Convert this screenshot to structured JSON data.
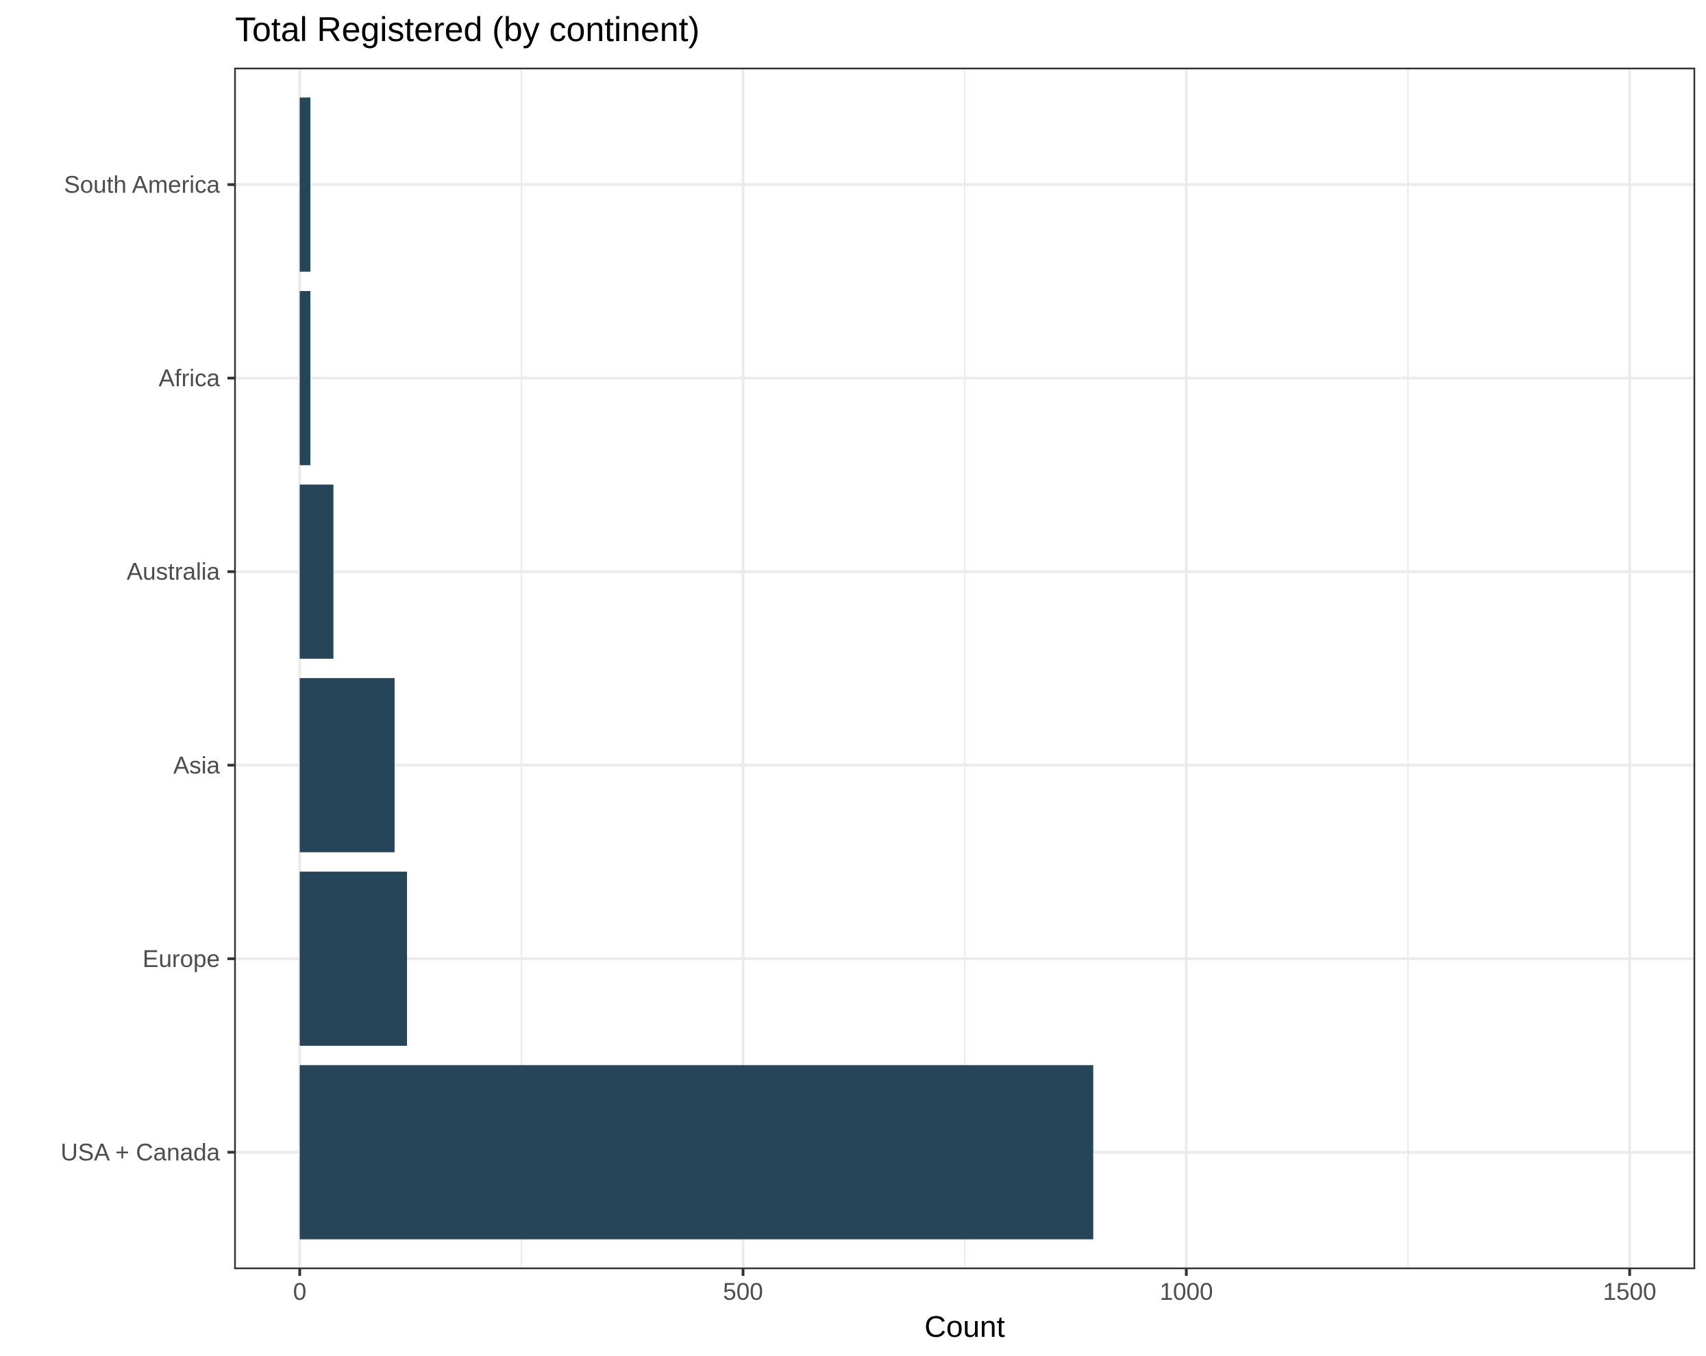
{
  "chart_data": {
    "type": "bar",
    "orientation": "horizontal",
    "title": "Total Registered (by continent)",
    "xlabel": "Count",
    "ylabel": "",
    "categories": [
      "USA + Canada",
      "Europe",
      "Asia",
      "Australia",
      "Africa",
      "South America"
    ],
    "values": [
      895,
      121,
      107,
      38,
      12,
      12
    ],
    "xlim": [
      -73,
      1573
    ],
    "x_ticks": [
      0,
      500,
      1000,
      1500
    ],
    "x_tick_labels": [
      "0",
      "500",
      "1000",
      "1500"
    ],
    "bar_color": "#264559",
    "grid": true,
    "legend": "none"
  }
}
